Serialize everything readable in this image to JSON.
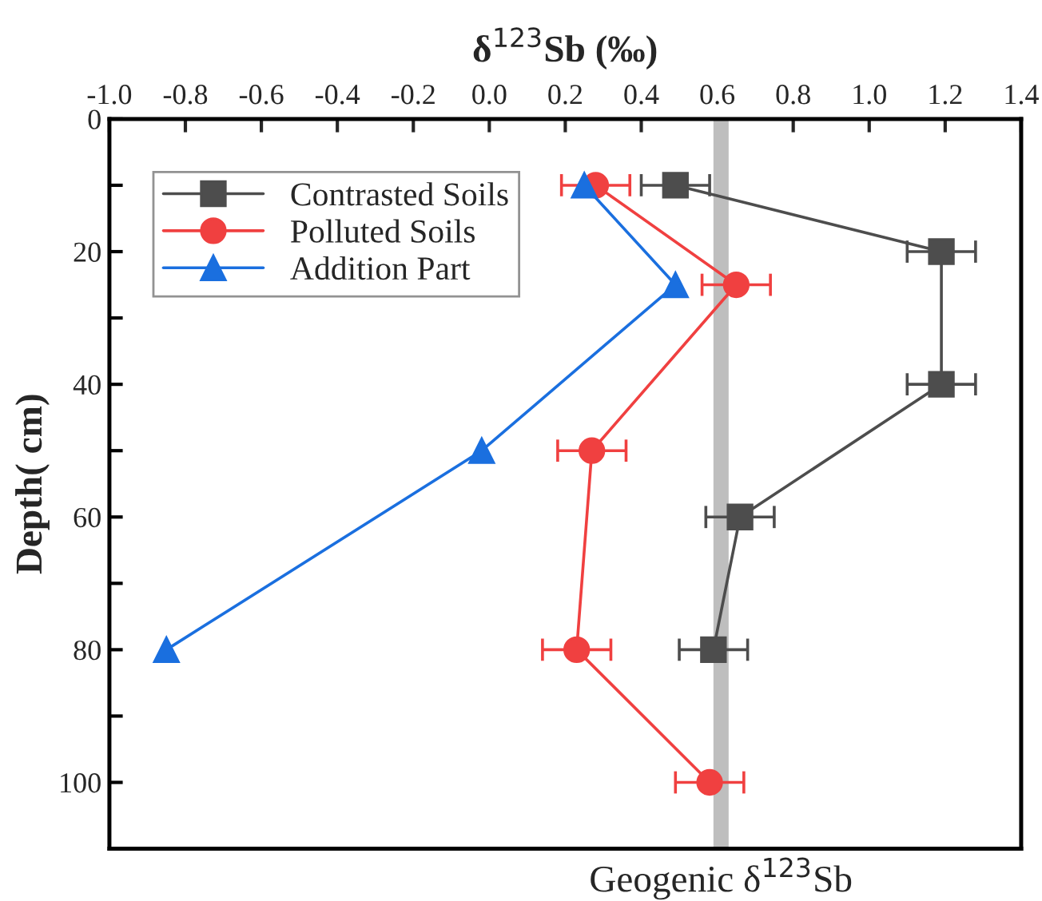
{
  "chart_data": {
    "type": "line",
    "xlabel": "δ$^{123}$Sb (‰)",
    "ylabel": "Depth( cm)",
    "xlim": [
      -1.0,
      1.4
    ],
    "xticks": [
      {
        "value": -1.0,
        "label": "-1.0"
      },
      {
        "value": -0.8,
        "label": "-0.8"
      },
      {
        "value": -0.6,
        "label": "-0.6"
      },
      {
        "value": -0.4,
        "label": "-0.4"
      },
      {
        "value": -0.2,
        "label": "-0.2"
      },
      {
        "value": 0.0,
        "label": "0.0"
      },
      {
        "value": 0.2,
        "label": "0.2"
      },
      {
        "value": 0.4,
        "label": "0.4"
      },
      {
        "value": 0.6,
        "label": "0.6"
      },
      {
        "value": 0.8,
        "label": "0.8"
      },
      {
        "value": 1.0,
        "label": "1.0"
      },
      {
        "value": 1.2,
        "label": "1.2"
      },
      {
        "value": 1.4,
        "label": "1.4"
      }
    ],
    "ylim": [
      110,
      0
    ],
    "yticks": [
      0,
      {
        "value": 10,
        "label": null
      },
      20,
      {
        "value": 30,
        "label": null
      },
      40,
      {
        "value": 50,
        "label": null
      },
      60,
      {
        "value": 70,
        "label": null
      },
      80,
      {
        "value": 90,
        "label": null
      },
      100
    ],
    "orientation": "horizontal",
    "legend": "top left",
    "grid": false,
    "bands": [
      {
        "axis": "x",
        "from": 0.59,
        "to": 0.63,
        "label": "Geogenic δ$^{123}$Sb",
        "color": "#bebebe"
      }
    ],
    "series": [
      {
        "name": "Contrasted Soils",
        "color": "#4d4d4d",
        "marker": "square",
        "x": [
          10,
          20,
          40,
          60,
          80
        ],
        "values": [
          0.49,
          1.19,
          1.19,
          0.66,
          0.59
        ],
        "errors": [
          0.09,
          0.09,
          0.09,
          0.09,
          0.09
        ]
      },
      {
        "name": "Polluted Soils",
        "color": "#f04040",
        "marker": "circle",
        "x": [
          10,
          25,
          50,
          80,
          100
        ],
        "values": [
          0.28,
          0.65,
          0.27,
          0.23,
          0.58
        ],
        "errors": [
          0.09,
          0.09,
          0.09,
          0.09,
          0.09
        ]
      },
      {
        "name": "Addition Part",
        "color": "#1a6fdf",
        "marker": "triangle",
        "x": [
          10,
          25,
          50,
          80
        ],
        "values": [
          0.25,
          0.49,
          -0.02,
          -0.85
        ]
      }
    ]
  }
}
